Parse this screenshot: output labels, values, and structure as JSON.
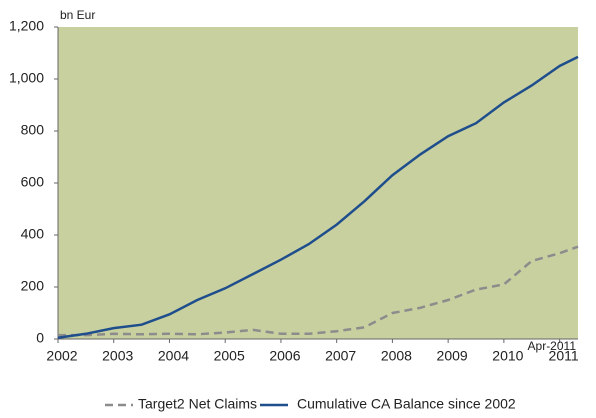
{
  "chart_data": {
    "type": "line",
    "y_unit_label": "bn Eur",
    "annotation": "Apr-2011",
    "x": [
      2002,
      2002.5,
      2003,
      2003.5,
      2004,
      2004.5,
      2005,
      2005.5,
      2006,
      2006.5,
      2007,
      2007.5,
      2008,
      2008.5,
      2009,
      2009.5,
      2010,
      2010.5,
      2011,
      2011.33
    ],
    "series": [
      {
        "name": "Target2 Net Claims",
        "color": "#8c8c8c",
        "style": "dashed",
        "values": [
          15,
          15,
          20,
          18,
          20,
          18,
          25,
          35,
          20,
          20,
          30,
          45,
          100,
          120,
          150,
          190,
          210,
          300,
          330,
          355
        ]
      },
      {
        "name": "Cumulative CA Balance since 2002",
        "color": "#1f4e8c",
        "style": "solid",
        "values": [
          5,
          20,
          42,
          55,
          95,
          150,
          195,
          250,
          305,
          365,
          440,
          530,
          630,
          710,
          780,
          830,
          910,
          975,
          1050,
          1085
        ]
      }
    ],
    "xlim": [
      2002,
      2011.33
    ],
    "xticks": [
      2002,
      2003,
      2004,
      2005,
      2006,
      2007,
      2008,
      2009,
      2010,
      2011
    ],
    "ylim": [
      0,
      1200
    ],
    "yticks": [
      0,
      200,
      400,
      600,
      800,
      {
        "value": 1000,
        "label": "1,000"
      },
      {
        "value": 1200,
        "label": "1,200"
      }
    ],
    "plot_background": "#c9d0a0",
    "legend": "bottom"
  }
}
